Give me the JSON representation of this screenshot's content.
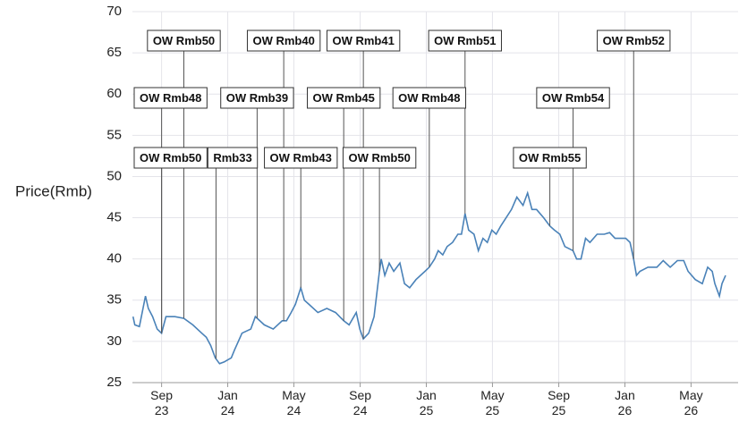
{
  "chart_data": {
    "type": "line",
    "y_label": "Price(Rmb)",
    "color": "#4a82b8",
    "xlim": [
      2023.52,
      2026.57
    ],
    "xticks": [
      {
        "value": 2023.667,
        "label": "Sep\n23"
      },
      {
        "value": 2024.0,
        "label": "Jan\n24"
      },
      {
        "value": 2024.333,
        "label": "May\n24"
      },
      {
        "value": 2024.667,
        "label": "Sep\n24"
      },
      {
        "value": 2025.0,
        "label": "Jan\n25"
      },
      {
        "value": 2025.333,
        "label": "May\n25"
      },
      {
        "value": 2025.667,
        "label": "Sep\n25"
      },
      {
        "value": 2026.0,
        "label": "Jan\n26"
      },
      {
        "value": 2026.333,
        "label": "May\n26"
      }
    ],
    "ylim": [
      25,
      70
    ],
    "yticks": [
      25,
      30,
      35,
      40,
      45,
      50,
      55,
      60,
      65,
      70
    ],
    "grid": true,
    "x": [
      2023.523,
      2023.532,
      2023.555,
      2023.586,
      2023.6,
      2023.622,
      2023.645,
      2023.667,
      2023.689,
      2023.734,
      2023.779,
      2023.824,
      2023.869,
      2023.892,
      2023.914,
      2023.937,
      2023.959,
      2023.982,
      2024.018,
      2024.035,
      2024.072,
      2024.116,
      2024.139,
      2024.184,
      2024.229,
      2024.274,
      2024.296,
      2024.319,
      2024.341,
      2024.368,
      2024.386,
      2024.409,
      2024.454,
      2024.499,
      2024.543,
      2024.584,
      2024.611,
      2024.647,
      2024.665,
      2024.683,
      2024.71,
      2024.737,
      2024.764,
      2024.773,
      2024.791,
      2024.813,
      2024.836,
      2024.867,
      2024.89,
      2024.916,
      2024.948,
      2024.993,
      2025.015,
      2025.042,
      2025.06,
      2025.083,
      2025.105,
      2025.132,
      2025.159,
      2025.177,
      2025.195,
      2025.213,
      2025.24,
      2025.262,
      2025.285,
      2025.307,
      2025.33,
      2025.352,
      2025.375,
      2025.402,
      2025.429,
      2025.456,
      2025.487,
      2025.51,
      2025.532,
      2025.555,
      2025.591,
      2025.622,
      2025.645,
      2025.672,
      2025.698,
      2025.739,
      2025.757,
      2025.779,
      2025.802,
      2025.824,
      2025.86,
      2025.896,
      2025.923,
      2025.95,
      2025.981,
      2026.004,
      2026.026,
      2026.044,
      2026.058,
      2026.076,
      2026.116,
      2026.161,
      2026.193,
      2026.228,
      2026.264,
      2026.296,
      2026.318,
      2026.354,
      2026.39,
      2026.417,
      2026.44,
      2026.453,
      2026.476,
      2026.489,
      2026.507
    ],
    "values": [
      33,
      32,
      31.8,
      35.5,
      34,
      33,
      31.5,
      31,
      33,
      33,
      32.8,
      32,
      31,
      30.5,
      29.5,
      28,
      27.3,
      27.5,
      28,
      29,
      31,
      31.5,
      33,
      32,
      31.5,
      32.5,
      32.5,
      33.5,
      34.5,
      36.5,
      35,
      34.5,
      33.5,
      34,
      33.5,
      32.5,
      32,
      33.5,
      31.5,
      30.3,
      31,
      33,
      38.5,
      40,
      38,
      39.5,
      38.5,
      39.5,
      37,
      36.5,
      37.5,
      38.5,
      39,
      40,
      41,
      40.5,
      41.5,
      42,
      43,
      43,
      45.5,
      43.5,
      43,
      41,
      42.5,
      42,
      43.5,
      43,
      44,
      45,
      46,
      47.5,
      46.5,
      48,
      46,
      46,
      45,
      44,
      43.5,
      43,
      41.5,
      41,
      40,
      40,
      42.5,
      42,
      43,
      43,
      43.2,
      42.5,
      42.5,
      42.5,
      42,
      40,
      38,
      38.5,
      39,
      39,
      39.8,
      39,
      39.8,
      39.8,
      38.5,
      37.5,
      37,
      39,
      38.5,
      37,
      35.5,
      37,
      38
    ],
    "annotations": [
      {
        "label": "OW Rmb50",
        "x": 2023.779
      },
      {
        "label": "OW Rmb40",
        "x": 2024.282
      },
      {
        "label": "OW Rmb41",
        "x": 2024.683
      },
      {
        "label": "OW Rmb51",
        "x": 2025.195
      },
      {
        "label": "OW Rmb52",
        "x": 2026.044
      },
      {
        "label": "OW Rmb48",
        "x": 2023.667
      },
      {
        "label": "OW Rmb39",
        "x": 2024.148
      },
      {
        "label": "OW Rmb45",
        "x": 2024.584
      },
      {
        "label": "OW Rmb48",
        "x": 2025.015
      },
      {
        "label": "OW Rmb54",
        "x": 2025.739
      },
      {
        "label": "OW Rmb50",
        "x": 2023.667
      },
      {
        "label": "Rmb33",
        "x": 2023.941
      },
      {
        "label": "OW Rmb43",
        "x": 2024.368
      },
      {
        "label": "OW Rmb50",
        "x": 2024.764
      },
      {
        "label": "OW Rmb55",
        "x": 2025.622
      }
    ]
  }
}
